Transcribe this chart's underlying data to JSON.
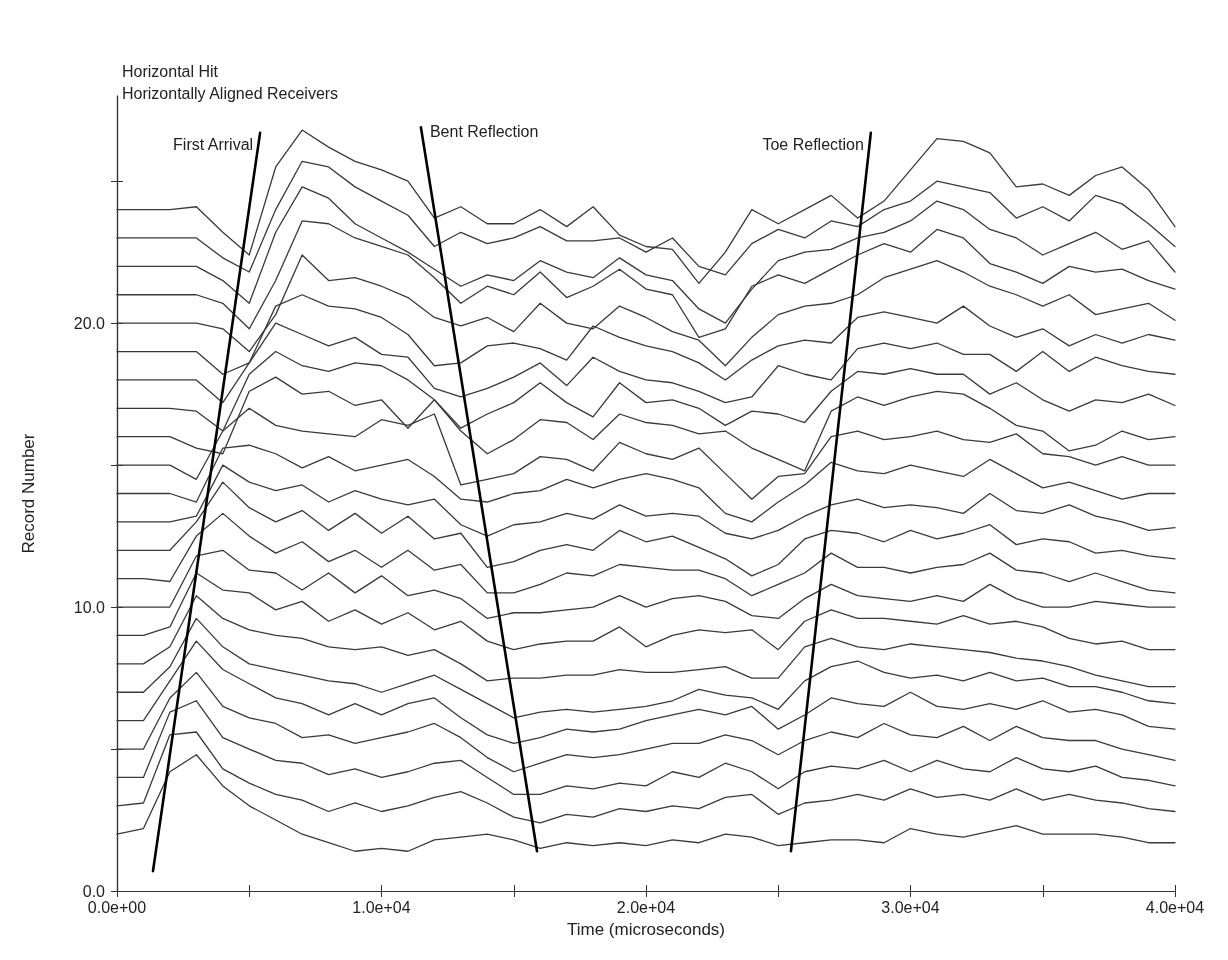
{
  "chart_data": {
    "type": "line",
    "title": "Horizontal Hit",
    "subtitle": "Horizontally Aligned Receivers",
    "xlabel": "Time (microseconds)",
    "ylabel": "Record Number",
    "marker": "none",
    "line_style": "solid",
    "xlim": [
      0,
      40000
    ],
    "ylim": [
      0,
      28
    ],
    "xticks": [
      {
        "value": 0,
        "label": "0.0e+00"
      },
      {
        "value": 5000,
        "label": null
      },
      {
        "value": 10000,
        "label": "1.0e+04"
      },
      {
        "value": 15000,
        "label": null
      },
      {
        "value": 20000,
        "label": "2.0e+04"
      },
      {
        "value": 25000,
        "label": null
      },
      {
        "value": 30000,
        "label": "3.0e+04"
      },
      {
        "value": 35000,
        "label": null
      },
      {
        "value": 40000,
        "label": "4.0e+04"
      }
    ],
    "yticks": [
      {
        "value": 0,
        "label": "0.0"
      },
      {
        "value": 5,
        "label": null
      },
      {
        "value": 10,
        "label": "10.0"
      },
      {
        "value": 15,
        "label": null
      },
      {
        "value": 20,
        "label": "20.0"
      },
      {
        "value": 25,
        "label": null
      }
    ],
    "x": [
      0,
      1000,
      2000,
      3000,
      4000,
      5000,
      6000,
      7000,
      8000,
      9000,
      10000,
      11000,
      12000,
      13000,
      14000,
      15000,
      16000,
      17000,
      18000,
      19000,
      20000,
      21000,
      22000,
      23000,
      24000,
      25000,
      26000,
      27000,
      28000,
      29000,
      30000,
      31000,
      32000,
      33000,
      34000,
      35000,
      36000,
      37000,
      38000,
      39000,
      40000
    ],
    "series": [
      {
        "color": "#3a3a3a",
        "values": [
          24,
          24,
          24,
          24.1,
          23.2,
          22.4,
          25.5,
          26.8,
          26.2,
          25.7,
          25.4,
          25.0,
          23.7,
          24.1,
          23.5,
          23.5,
          24.0,
          23.4,
          24.1,
          23.1,
          22.7,
          22.6,
          21.4,
          22.5,
          24.0,
          23.5,
          24.0,
          24.5,
          23.7,
          24.3,
          25.4,
          26.5,
          26.4,
          26.0,
          24.8,
          24.9,
          24.5,
          25.2,
          25.5,
          24.7,
          23.4
        ]
      },
      {
        "color": "#3a3a3a",
        "values": [
          23,
          23,
          23,
          23,
          22.3,
          21.8,
          24.0,
          25.7,
          25.5,
          24.8,
          24.3,
          23.8,
          22.7,
          23.2,
          22.8,
          23.0,
          23.4,
          22.9,
          22.9,
          23.0,
          22.5,
          23.0,
          22.0,
          21.7,
          22.8,
          23.3,
          23.0,
          23.6,
          23.4,
          24.0,
          24.3,
          25.0,
          24.8,
          24.6,
          23.7,
          24.1,
          23.6,
          24.5,
          24.2,
          23.5,
          22.7
        ]
      },
      {
        "color": "#3a3a3a",
        "values": [
          22,
          22,
          22,
          22,
          21.5,
          20.7,
          23.2,
          24.8,
          24.4,
          23.5,
          23.0,
          22.5,
          21.9,
          21.3,
          21.7,
          21.5,
          22.2,
          21.8,
          21.6,
          22.3,
          21.7,
          21.5,
          20.5,
          20.0,
          21.2,
          22.2,
          22.5,
          22.6,
          23.0,
          23.2,
          23.6,
          24.3,
          24.0,
          23.3,
          23.0,
          22.4,
          22.8,
          23.2,
          22.6,
          22.9,
          21.8
        ]
      },
      {
        "color": "#3a3a3a",
        "values": [
          21,
          21,
          21,
          21,
          20.7,
          19.8,
          21.5,
          23.6,
          23.5,
          23.0,
          22.7,
          22.4,
          21.6,
          20.7,
          21.3,
          21.0,
          21.8,
          20.9,
          21.3,
          21.9,
          21.2,
          21.0,
          19.5,
          19.8,
          21.3,
          21.7,
          21.4,
          21.9,
          22.4,
          22.8,
          22.5,
          23.3,
          23.0,
          22.1,
          21.8,
          21.4,
          22.0,
          21.8,
          21.9,
          21.5,
          21.2
        ]
      },
      {
        "color": "#3a3a3a",
        "values": [
          20,
          20,
          20,
          20,
          19.8,
          19.0,
          20.3,
          22.4,
          21.5,
          21.6,
          21.3,
          20.9,
          20.2,
          19.9,
          20.2,
          19.7,
          20.7,
          20.0,
          19.8,
          20.6,
          20.2,
          19.7,
          19.4,
          18.5,
          19.5,
          20.3,
          20.6,
          20.7,
          21.0,
          21.6,
          21.9,
          22.2,
          21.8,
          21.3,
          21.0,
          20.6,
          21.0,
          20.3,
          20.5,
          20.7,
          20.1
        ]
      },
      {
        "color": "#3a3a3a",
        "values": [
          19,
          19,
          19,
          19,
          18.2,
          18.6,
          20.6,
          21.0,
          20.6,
          20.5,
          20.2,
          19.6,
          18.5,
          18.6,
          19.2,
          19.3,
          19.1,
          18.7,
          19.9,
          19.5,
          19.2,
          19.0,
          18.6,
          18.0,
          18.7,
          19.2,
          19.4,
          19.3,
          20.2,
          20.4,
          20.2,
          20.0,
          20.6,
          19.9,
          19.5,
          19.8,
          19.2,
          19.6,
          19.3,
          19.6,
          19.4
        ]
      },
      {
        "color": "#3a3a3a",
        "values": [
          18,
          18,
          18,
          18,
          17.2,
          18.6,
          20.0,
          19.6,
          19.2,
          19.5,
          18.9,
          18.8,
          17.7,
          17.4,
          17.7,
          18.1,
          18.6,
          17.8,
          18.8,
          18.3,
          18.0,
          17.9,
          17.6,
          17.2,
          17.4,
          18.5,
          18.2,
          18.0,
          19.1,
          19.3,
          19.1,
          19.3,
          18.9,
          18.9,
          18.3,
          19.0,
          18.3,
          18.8,
          18.5,
          18.3,
          18.2
        ]
      },
      {
        "color": "#3a3a3a",
        "values": [
          17,
          17,
          17,
          16.9,
          16.2,
          18.2,
          19.0,
          18.5,
          18.3,
          18.6,
          18.5,
          18.0,
          17.3,
          16.3,
          16.8,
          17.2,
          17.9,
          17.2,
          16.7,
          17.9,
          17.2,
          17.3,
          17.0,
          16.4,
          16.9,
          16.8,
          16.5,
          17.6,
          18.3,
          18.2,
          18.4,
          18.2,
          18.2,
          17.5,
          17.9,
          17.3,
          16.9,
          17.3,
          17.2,
          17.5,
          17.1
        ]
      },
      {
        "color": "#3a3a3a",
        "values": [
          16,
          16,
          16,
          15.6,
          15.4,
          17.6,
          18.1,
          17.5,
          17.6,
          17.1,
          17.3,
          16.3,
          17.3,
          16.2,
          15.4,
          15.9,
          16.6,
          16.5,
          15.9,
          16.8,
          16.5,
          16.4,
          16.1,
          16.2,
          15.6,
          15.2,
          14.8,
          16.9,
          17.4,
          17.1,
          17.4,
          17.6,
          17.5,
          17.0,
          16.4,
          16.2,
          15.5,
          15.7,
          16.2,
          15.9,
          16.0
        ]
      },
      {
        "color": "#3a3a3a",
        "values": [
          15,
          15,
          15,
          14.5,
          16.2,
          17.0,
          16.4,
          16.2,
          16.1,
          16.0,
          16.6,
          16.4,
          16.8,
          14.3,
          14.5,
          14.7,
          15.3,
          15.2,
          14.8,
          15.8,
          15.4,
          15.2,
          15.6,
          14.7,
          13.8,
          14.6,
          14.7,
          16.0,
          16.2,
          15.9,
          16.0,
          16.2,
          15.9,
          15.8,
          16.1,
          15.4,
          15.3,
          15.0,
          15.3,
          15.0,
          15.0
        ]
      },
      {
        "color": "#3a3a3a",
        "values": [
          14,
          14,
          14,
          13.7,
          15.6,
          15.7,
          15.4,
          14.9,
          15.3,
          14.8,
          15.0,
          15.2,
          14.6,
          13.8,
          13.7,
          14.0,
          14.1,
          14.5,
          14.2,
          14.5,
          14.7,
          14.5,
          14.2,
          13.3,
          13.0,
          13.7,
          14.3,
          15.1,
          14.8,
          14.7,
          15.0,
          14.8,
          14.6,
          15.2,
          14.7,
          14.2,
          14.4,
          14.1,
          13.8,
          14.0,
          14.0
        ]
      },
      {
        "color": "#3a3a3a",
        "values": [
          13,
          13,
          13,
          13.2,
          15.0,
          14.4,
          14.1,
          14.3,
          13.7,
          14.1,
          13.8,
          13.6,
          13.8,
          12.9,
          12.5,
          12.9,
          13.0,
          13.3,
          13.1,
          13.6,
          13.2,
          13.3,
          13.2,
          12.6,
          12.4,
          12.7,
          13.2,
          13.6,
          13.8,
          13.5,
          13.6,
          13.5,
          13.3,
          14.0,
          13.4,
          13.3,
          13.6,
          13.2,
          13.0,
          12.7,
          12.8
        ]
      },
      {
        "color": "#3a3a3a",
        "values": [
          12,
          12,
          12,
          13.0,
          14.4,
          13.5,
          13.0,
          13.4,
          12.7,
          13.3,
          12.6,
          13.2,
          12.4,
          12.6,
          11.4,
          11.6,
          12.0,
          12.2,
          12.0,
          12.7,
          12.3,
          12.5,
          12.1,
          11.7,
          11.1,
          11.5,
          12.4,
          12.7,
          12.6,
          12.3,
          12.7,
          12.4,
          12.6,
          12.9,
          12.2,
          12.4,
          12.3,
          11.9,
          12.0,
          11.8,
          11.7
        ]
      },
      {
        "color": "#3a3a3a",
        "values": [
          11,
          11,
          10.9,
          12.5,
          13.3,
          12.5,
          11.9,
          12.3,
          11.6,
          12.0,
          11.4,
          12.0,
          11.3,
          11.5,
          10.5,
          10.5,
          10.8,
          11.2,
          11.1,
          11.5,
          11.4,
          11.3,
          11.3,
          11.0,
          10.4,
          10.8,
          11.2,
          11.9,
          11.4,
          11.4,
          11.2,
          11.4,
          11.5,
          11.9,
          11.3,
          11.2,
          10.9,
          11.2,
          10.9,
          10.6,
          10.5
        ]
      },
      {
        "color": "#3a3a3a",
        "values": [
          10,
          10,
          10,
          11.8,
          12.0,
          11.3,
          11.2,
          10.6,
          11.2,
          10.5,
          11.1,
          10.4,
          10.6,
          10.3,
          9.6,
          9.8,
          9.8,
          9.9,
          10.0,
          10.4,
          10.0,
          10.3,
          10.4,
          10.2,
          9.7,
          9.6,
          10.3,
          10.8,
          10.4,
          10.3,
          10.2,
          10.4,
          10.2,
          10.8,
          10.3,
          10.0,
          10.0,
          10.2,
          10.1,
          10.0,
          10.0
        ]
      },
      {
        "color": "#3a3a3a",
        "values": [
          9,
          9,
          9.3,
          11.2,
          10.6,
          10.5,
          9.9,
          10.2,
          9.5,
          9.9,
          9.4,
          9.8,
          9.2,
          9.5,
          8.8,
          8.5,
          8.7,
          8.8,
          8.8,
          9.3,
          8.6,
          9.0,
          9.2,
          9.1,
          9.2,
          8.5,
          9.5,
          9.9,
          9.6,
          9.6,
          9.5,
          9.4,
          9.7,
          9.4,
          9.5,
          9.3,
          8.9,
          8.7,
          8.8,
          8.5,
          8.5
        ]
      },
      {
        "color": "#3a3a3a",
        "values": [
          8,
          8,
          8.6,
          10.4,
          9.6,
          9.2,
          9.0,
          8.9,
          8.6,
          8.5,
          8.6,
          8.3,
          8.5,
          8.0,
          7.4,
          7.5,
          7.5,
          7.6,
          7.6,
          7.8,
          7.7,
          7.7,
          7.8,
          7.9,
          7.5,
          7.5,
          8.6,
          8.9,
          8.6,
          8.5,
          8.7,
          8.6,
          8.5,
          8.4,
          8.2,
          8.1,
          7.9,
          7.6,
          7.4,
          7.2,
          7.2
        ]
      },
      {
        "color": "#3a3a3a",
        "values": [
          7,
          7,
          7.9,
          9.6,
          8.6,
          8.0,
          7.8,
          7.6,
          7.4,
          7.3,
          7.0,
          7.3,
          7.6,
          7.1,
          6.6,
          6.1,
          6.3,
          6.4,
          6.3,
          6.4,
          6.5,
          6.7,
          7.1,
          6.9,
          6.8,
          6.4,
          7.4,
          7.9,
          8.1,
          7.7,
          7.5,
          7.6,
          7.4,
          7.7,
          7.4,
          7.5,
          7.2,
          7.2,
          7.0,
          6.7,
          6.6
        ]
      },
      {
        "color": "#3a3a3a",
        "values": [
          6,
          6,
          7.4,
          8.8,
          7.8,
          7.3,
          6.8,
          6.6,
          6.2,
          6.6,
          6.2,
          6.6,
          6.8,
          6.1,
          5.5,
          5.2,
          5.4,
          5.7,
          5.6,
          5.7,
          6.0,
          6.2,
          6.4,
          6.2,
          6.5,
          5.7,
          6.2,
          6.8,
          6.6,
          6.5,
          7.0,
          6.5,
          6.4,
          6.6,
          6.4,
          6.7,
          6.3,
          6.4,
          6.2,
          5.8,
          5.7
        ]
      },
      {
        "color": "#3a3a3a",
        "values": [
          5,
          5,
          6.8,
          7.7,
          6.5,
          6.1,
          5.9,
          5.4,
          5.5,
          5.2,
          5.4,
          5.6,
          5.9,
          5.4,
          4.7,
          4.2,
          4.5,
          4.8,
          4.7,
          4.8,
          5.0,
          5.2,
          5.2,
          5.5,
          5.3,
          4.8,
          5.3,
          5.6,
          5.4,
          5.9,
          5.5,
          5.4,
          5.8,
          5.3,
          5.8,
          5.4,
          5.3,
          5.3,
          5.0,
          4.8,
          4.6
        ]
      },
      {
        "color": "#3a3a3a",
        "values": [
          4,
          4,
          6.3,
          6.7,
          5.4,
          5.0,
          4.6,
          4.5,
          4.1,
          4.3,
          4.0,
          4.2,
          4.5,
          4.6,
          4.0,
          3.4,
          3.4,
          3.7,
          3.6,
          3.8,
          3.7,
          4.2,
          4.0,
          4.5,
          4.2,
          3.6,
          4.2,
          4.4,
          4.3,
          4.6,
          4.2,
          4.6,
          4.3,
          4.2,
          4.7,
          4.3,
          4.2,
          4.4,
          4.0,
          3.9,
          3.7
        ]
      },
      {
        "color": "#3a3a3a",
        "values": [
          3,
          3.1,
          5.5,
          5.6,
          4.3,
          3.8,
          3.4,
          3.2,
          2.8,
          3.1,
          2.8,
          3.0,
          3.3,
          3.5,
          3.1,
          2.6,
          2.4,
          2.7,
          2.6,
          2.9,
          2.8,
          3.0,
          2.9,
          3.3,
          3.4,
          2.7,
          3.1,
          3.2,
          3.4,
          3.2,
          3.6,
          3.3,
          3.4,
          3.2,
          3.6,
          3.2,
          3.4,
          3.2,
          3.1,
          2.9,
          2.8
        ]
      },
      {
        "color": "#3a3a3a",
        "values": [
          2,
          2.2,
          4.2,
          4.8,
          3.7,
          3.0,
          2.5,
          2.0,
          1.7,
          1.4,
          1.5,
          1.4,
          1.8,
          1.9,
          2.0,
          1.8,
          1.5,
          1.7,
          1.6,
          1.7,
          1.6,
          1.8,
          1.7,
          2.0,
          1.9,
          1.6,
          1.7,
          1.8,
          1.8,
          1.7,
          2.2,
          2.0,
          1.9,
          2.1,
          2.3,
          2.0,
          2.0,
          2.0,
          1.9,
          1.7,
          1.7
        ]
      },
      {
        "type": "line",
        "name": "First Arrival",
        "color": "#000000",
        "x": [
          1360,
          5410
        ],
        "values": [
          0.7,
          26.7
        ]
      },
      {
        "type": "line",
        "name": "Bent Reflection",
        "color": "#000000",
        "x": [
          11490,
          15880
        ],
        "values": [
          26.9,
          1.4
        ]
      },
      {
        "type": "line",
        "name": "Toe Reflection",
        "color": "#000000",
        "x": [
          25480,
          28500
        ],
        "values": [
          1.4,
          26.7
        ]
      }
    ]
  }
}
